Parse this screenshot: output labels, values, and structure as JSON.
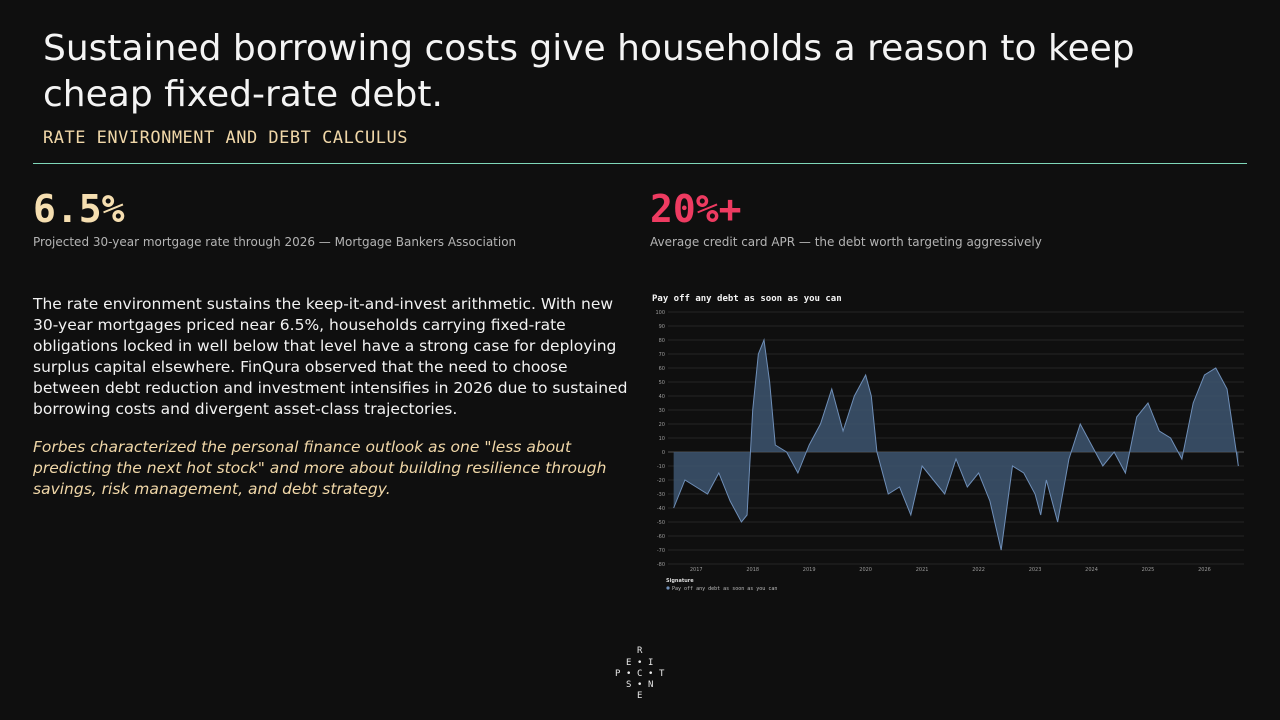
{
  "header": {
    "title": "Sustained borrowing costs give households a reason to keep cheap fixed-rate debt.",
    "subtitle": "RATE ENVIRONMENT AND DEBT CALCULUS"
  },
  "stats": [
    {
      "value": "6.5%",
      "caption": "Projected 30-year mortgage rate through 2026 — Mortgage Bankers Association",
      "color": "#f5deb0"
    },
    {
      "value": "20%+",
      "caption": "Average credit card APR — the debt worth targeting aggressively",
      "color": "#ee3b61"
    }
  ],
  "body": {
    "paragraph": "The rate environment sustains the keep-it-and-invest arithmetic. With new 30-year mortgages priced near 6.5%, households carrying fixed-rate obligations locked in well below that level have a strong case for deploying surplus capital elsewhere. FinQura observed that the need to choose between debt reduction and investment intensifies in 2026 due to sustained borrowing costs and divergent asset-class trajectories.",
    "quote": "Forbes characterized the personal finance outlook as one \"less about predicting the next hot stock\" and more about building resilience through savings, risk management, and debt strategy."
  },
  "colors": {
    "accent_rule": "#7fd7b9",
    "series_fill": "#3d5570",
    "series_line": "#6f8fb8"
  },
  "chart_data": {
    "type": "area",
    "title": "Pay off any debt as soon as you can",
    "xlabel": "",
    "ylabel": "",
    "ylim": [
      -80,
      100
    ],
    "yticks": [
      -80,
      -70,
      -60,
      -50,
      -40,
      -30,
      -20,
      -10,
      0,
      10,
      20,
      30,
      40,
      50,
      60,
      70,
      80,
      90,
      100
    ],
    "xticks": [
      "2017",
      "2018",
      "2019",
      "2020",
      "2021",
      "2022",
      "2023",
      "2024",
      "2025",
      "2026"
    ],
    "grid": true,
    "legend": {
      "title": "Signature",
      "position": "bottom-left"
    },
    "series": [
      {
        "name": "Pay off any debt as soon as you can",
        "x": [
          2016.6,
          2016.8,
          2017.0,
          2017.2,
          2017.4,
          2017.6,
          2017.8,
          2017.9,
          2018.0,
          2018.1,
          2018.2,
          2018.3,
          2018.4,
          2018.6,
          2018.8,
          2019.0,
          2019.2,
          2019.4,
          2019.6,
          2019.8,
          2020.0,
          2020.1,
          2020.2,
          2020.4,
          2020.6,
          2020.8,
          2021.0,
          2021.2,
          2021.4,
          2021.6,
          2021.8,
          2022.0,
          2022.2,
          2022.4,
          2022.6,
          2022.8,
          2023.0,
          2023.1,
          2023.2,
          2023.4,
          2023.6,
          2023.8,
          2024.0,
          2024.2,
          2024.4,
          2024.6,
          2024.8,
          2025.0,
          2025.2,
          2025.4,
          2025.6,
          2025.8,
          2026.0,
          2026.2,
          2026.4,
          2026.6
        ],
        "values": [
          -40,
          -20,
          -25,
          -30,
          -15,
          -35,
          -50,
          -45,
          30,
          70,
          80,
          50,
          5,
          0,
          -15,
          5,
          20,
          45,
          15,
          40,
          55,
          40,
          0,
          -30,
          -25,
          -45,
          -10,
          -20,
          -30,
          -5,
          -25,
          -15,
          -35,
          -70,
          -10,
          -15,
          -30,
          -45,
          -20,
          -50,
          -5,
          20,
          5,
          -10,
          0,
          -15,
          25,
          35,
          15,
          10,
          -5,
          35,
          55,
          60,
          45,
          -10
        ]
      }
    ]
  },
  "logo": {
    "letters": [
      "R",
      "E",
      "I",
      "P",
      "C",
      "T",
      "S",
      "N",
      "E"
    ]
  }
}
